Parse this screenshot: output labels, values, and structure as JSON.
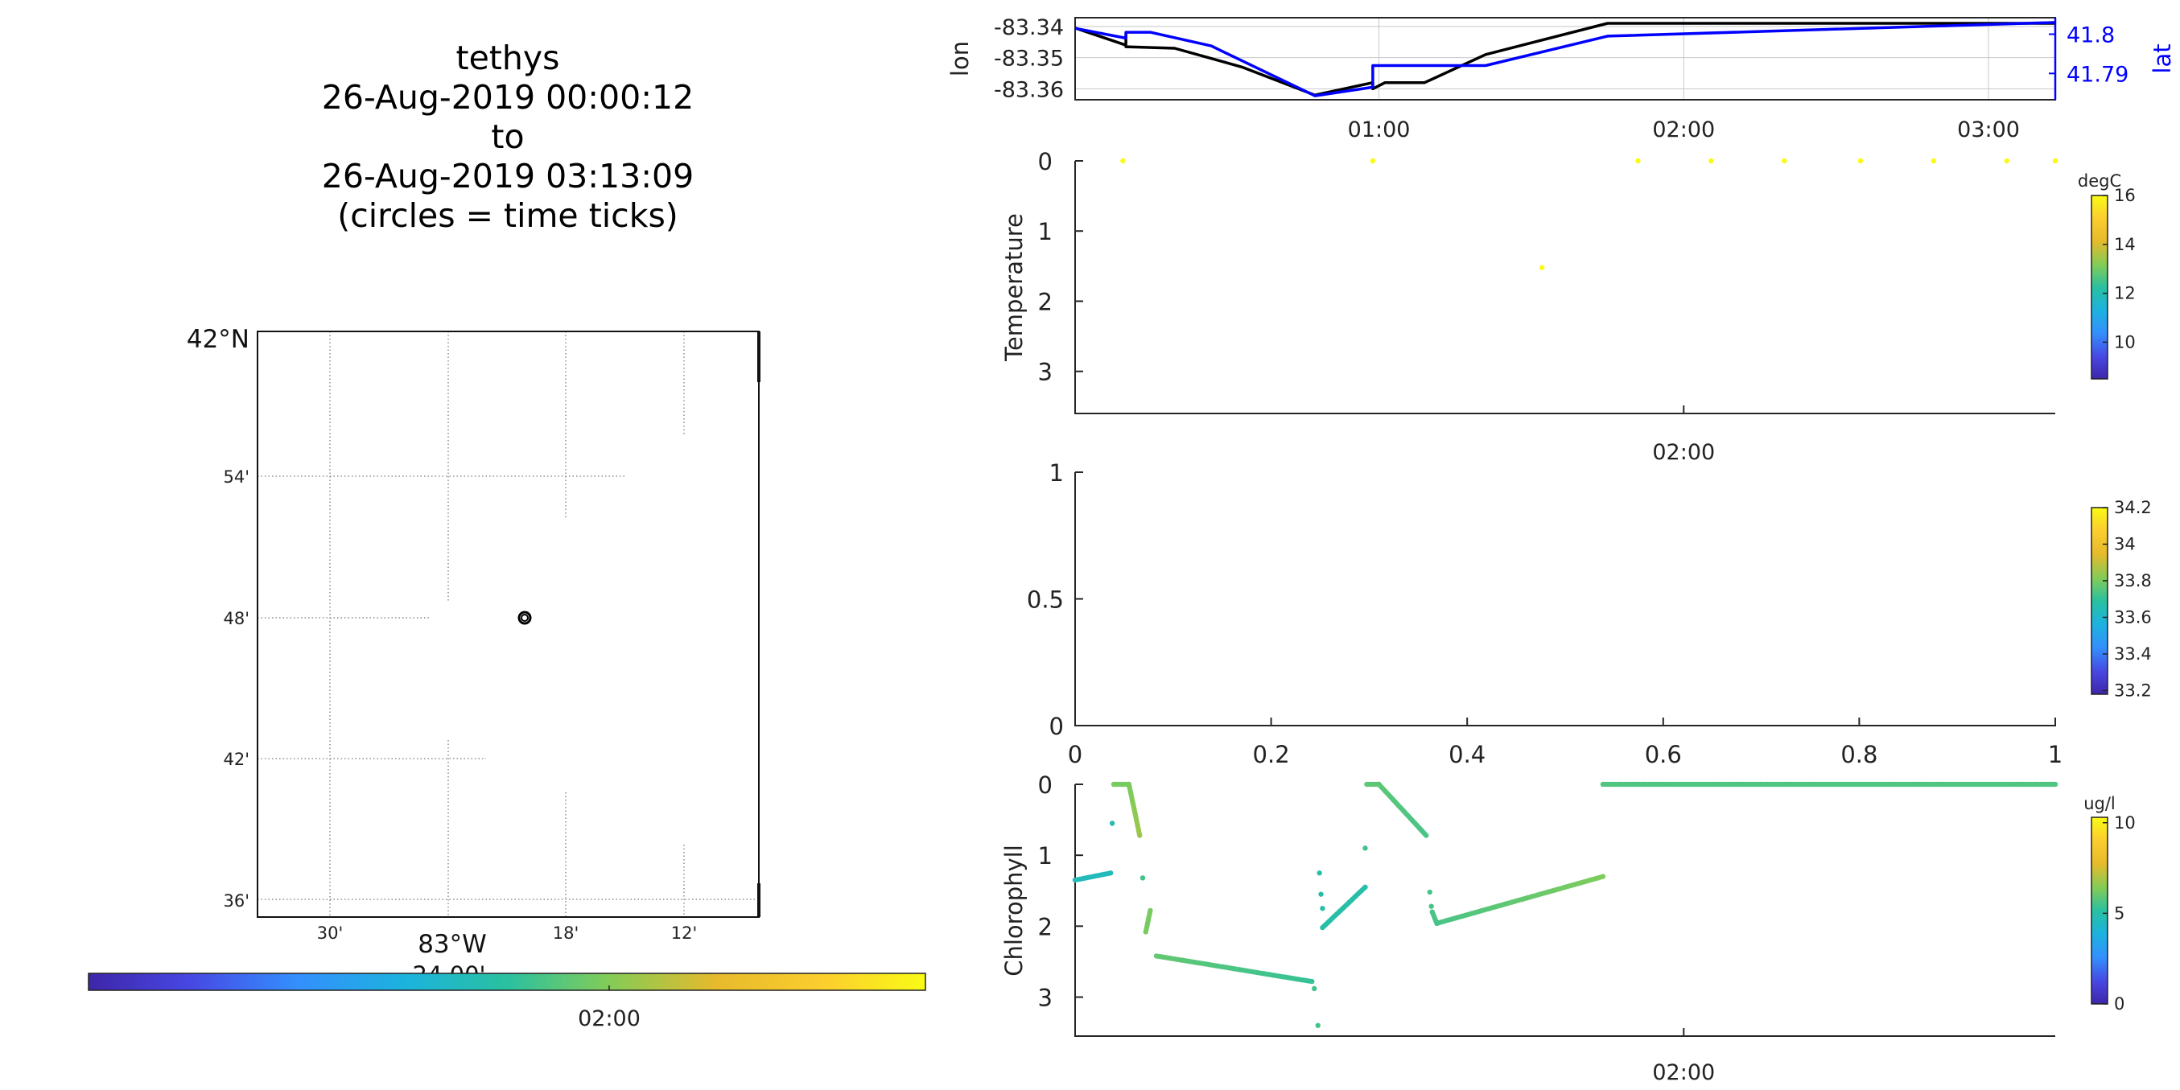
{
  "figure": {
    "title_lines": [
      "tethys",
      "26-Aug-2019 00:00:12",
      "to",
      "26-Aug-2019 03:13:09",
      "(circles = time ticks)"
    ]
  },
  "map": {
    "lat_labels": [
      "42°N",
      "54'",
      "48'",
      "42'",
      "36'"
    ],
    "lon_labels": [
      "30'",
      "18'",
      "12'"
    ],
    "lon_main_label": "83°W",
    "lon_sub_label": "24.00'",
    "colorbar_tick": "02:00",
    "colormap": [
      "#3e26a8",
      "#4747e3",
      "#3390fd",
      "#1cb3dd",
      "#2ac0a0",
      "#81cc58",
      "#e6ba2c",
      "#fcce2e",
      "#f9fb15"
    ]
  },
  "chart_data": [
    {
      "type": "line",
      "ylabel": "lon",
      "y2label": "lat",
      "x_ticks": [
        "01:00",
        "02:00",
        "03:00"
      ],
      "x_tick_hours": [
        1,
        2,
        3
      ],
      "xlim_hours": [
        0.0033,
        3.219
      ],
      "y_ticks": [
        "-83.34",
        "-83.35",
        "-83.36"
      ],
      "y_tick_values": [
        -83.34,
        -83.35,
        -83.36
      ],
      "ylim": [
        -83.3635,
        -83.3372
      ],
      "y2_ticks": [
        "41.8",
        "41.79"
      ],
      "y2_tick_values": [
        41.8,
        41.79
      ],
      "y2lim": [
        41.7833,
        41.8042
      ],
      "series": [
        {
          "name": "lon",
          "color": "#000000",
          "points": [
            [
              0.0033,
              -83.3405
            ],
            [
              0.17,
              -83.346
            ],
            [
              0.17,
              -83.3425
            ],
            [
              0.17,
              -83.3465
            ],
            [
              0.33,
              -83.347
            ],
            [
              0.55,
              -83.353
            ],
            [
              0.79,
              -83.362
            ],
            [
              0.98,
              -83.358
            ],
            [
              0.98,
              -83.36
            ],
            [
              1.02,
              -83.358
            ],
            [
              1.15,
              -83.358
            ],
            [
              1.35,
              -83.349
            ],
            [
              1.75,
              -83.339
            ],
            [
              2.5,
              -83.339
            ],
            [
              3.219,
              -83.339
            ]
          ]
        },
        {
          "name": "lat",
          "color": "#0000ff",
          "points": [
            [
              0.0033,
              41.8015
            ],
            [
              0.17,
              41.799
            ],
            [
              0.17,
              41.8005
            ],
            [
              0.25,
              41.8005
            ],
            [
              0.45,
              41.797
            ],
            [
              0.79,
              41.7843
            ],
            [
              0.98,
              41.7865
            ],
            [
              0.98,
              41.792
            ],
            [
              1.35,
              41.792
            ],
            [
              1.75,
              41.7995
            ],
            [
              3.219,
              41.803
            ]
          ]
        }
      ]
    },
    {
      "type": "scatter",
      "ylabel": "Temperature",
      "colorbar_label": "degC",
      "colorbar_ticks": [
        "16",
        "14",
        "12",
        "10"
      ],
      "colorbar_tick_values": [
        16,
        14,
        12,
        10
      ],
      "clim": [
        8.5,
        16
      ],
      "x_ticks": [
        "02:00"
      ],
      "x_tick_hours": [
        2
      ],
      "xlim_hours": [
        0.0033,
        3.219
      ],
      "y_ticks": [
        "0",
        "1",
        "2",
        "3"
      ],
      "y_tick_values": [
        0,
        1,
        2,
        3
      ],
      "ylim": [
        0,
        3.6
      ],
      "points": [
        [
          0.16,
          0,
          16
        ],
        [
          0.98,
          0,
          16
        ],
        [
          1.535,
          1.52,
          16
        ],
        [
          1.85,
          0,
          16
        ],
        [
          2.09,
          0,
          16
        ],
        [
          2.33,
          0,
          16
        ],
        [
          2.58,
          0,
          16
        ],
        [
          2.82,
          0,
          16
        ],
        [
          3.06,
          0,
          16
        ],
        [
          3.219,
          0,
          16
        ]
      ]
    },
    {
      "type": "scatter",
      "colorbar_ticks": [
        "34.2",
        "34",
        "33.8",
        "33.6",
        "33.4",
        "33.2"
      ],
      "colorbar_tick_values": [
        34.2,
        34.0,
        33.8,
        33.6,
        33.4,
        33.2
      ],
      "clim": [
        33.18,
        34.2
      ],
      "x_ticks": [
        "0",
        "0.2",
        "0.4",
        "0.6",
        "0.8",
        "1"
      ],
      "x_tick_values": [
        0,
        0.2,
        0.4,
        0.6,
        0.8,
        1
      ],
      "xlim": [
        0,
        1
      ],
      "y_ticks": [
        "0",
        "0.5",
        "1"
      ],
      "y_tick_values": [
        0,
        0.5,
        1
      ],
      "ylim": [
        0,
        1
      ],
      "points": []
    },
    {
      "type": "scatter",
      "ylabel": "Chlorophyll",
      "colorbar_label": "ug/l",
      "colorbar_ticks": [
        "10",
        "5",
        "0"
      ],
      "colorbar_tick_values": [
        10,
        5,
        0
      ],
      "clim": [
        0,
        10.3
      ],
      "x_ticks": [
        "02:00"
      ],
      "x_tick_hours": [
        2
      ],
      "xlim_hours": [
        0.0033,
        3.219
      ],
      "y_ticks": [
        "0",
        "1",
        "2",
        "3"
      ],
      "y_tick_values": [
        0,
        1,
        2,
        3
      ],
      "ylim": [
        0,
        3.55
      ],
      "segments": [
        {
          "from": [
            0.0033,
            1.35
          ],
          "to": [
            0.12,
            1.25
          ],
          "c": [
            4.6,
            4.6
          ]
        },
        {
          "from": [
            0.13,
            0.0
          ],
          "to": [
            0.18,
            0.0
          ],
          "c": [
            6.3,
            6.3
          ]
        },
        {
          "from": [
            0.18,
            0.0
          ],
          "to": [
            0.215,
            0.72
          ],
          "c": [
            6.3,
            6.8
          ]
        },
        {
          "from": [
            0.235,
            2.08
          ],
          "to": [
            0.25,
            1.78
          ],
          "c": [
            6.3,
            6.3
          ]
        },
        {
          "from": [
            0.27,
            2.42
          ],
          "to": [
            0.78,
            2.78
          ],
          "c": [
            6.0,
            5.3
          ]
        },
        {
          "from": [
            0.815,
            2.02
          ],
          "to": [
            0.955,
            1.45
          ],
          "c": [
            5.0,
            5.0
          ]
        },
        {
          "from": [
            0.96,
            0.0
          ],
          "to": [
            1.0,
            0.0
          ],
          "c": [
            5.9,
            5.9
          ]
        },
        {
          "from": [
            1.0,
            0.0
          ],
          "to": [
            1.155,
            0.72
          ],
          "c": [
            5.9,
            5.6
          ]
        },
        {
          "from": [
            1.175,
            1.8
          ],
          "to": [
            1.19,
            1.96
          ],
          "c": [
            5.6,
            5.6
          ]
        },
        {
          "from": [
            1.19,
            1.96
          ],
          "to": [
            1.735,
            1.3
          ],
          "c": [
            5.6,
            6.4
          ]
        },
        {
          "from": [
            1.735,
            0.0
          ],
          "to": [
            3.219,
            0.0
          ],
          "c": [
            5.7,
            5.7
          ]
        }
      ],
      "points": [
        [
          0.125,
          0.55,
          4.8
        ],
        [
          0.225,
          1.32,
          5.5
        ],
        [
          0.788,
          2.88,
          5.5
        ],
        [
          0.8,
          3.4,
          5.5
        ],
        [
          0.805,
          1.25,
          5.0
        ],
        [
          0.81,
          1.55,
          5.0
        ],
        [
          0.815,
          1.75,
          5.0
        ],
        [
          0.955,
          0.9,
          5.5
        ],
        [
          1.167,
          1.52,
          5.6
        ],
        [
          1.172,
          1.72,
          5.6
        ]
      ]
    }
  ]
}
